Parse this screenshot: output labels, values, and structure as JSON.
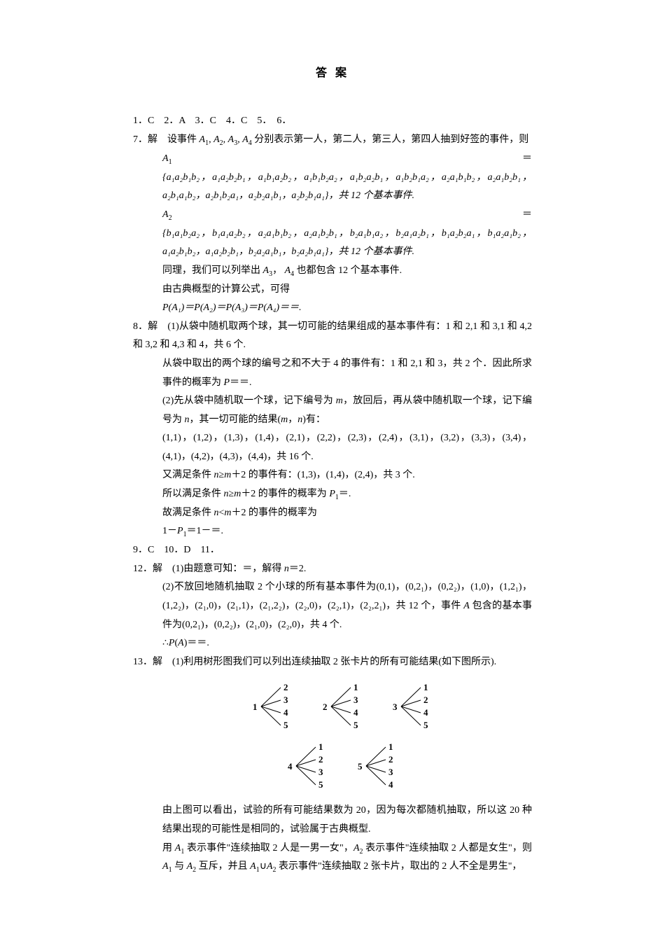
{
  "title": "答 案",
  "short_answers": "1．C　2．A　3．C　4．C　5．　6．",
  "q7": {
    "lead": "7．解　设事件",
    "lead2": "分别表示第一人，第二人，第三人，第四人抽到好签的事件，则",
    "set1": "{a₁a₂b₁b₂，a₁a₂b₂b₁，a₁b₁a₂b₂，a₁b₁b₂a₂，a₁b₂a₂b₁，a₁b₂b₁a₂，a₂a₁b₁b₂，a₂a₁b₂b₁，a₂b₁a₁b₂，a₂b₁b₂a₁，a₂b₂a₁b₁，a₂b₂b₁a₁}，共 12 个基本事件.",
    "set2": "{b₁a₁b₂a₂，b₁a₁a₂b₂，a₂a₁b₁b₂，a₂a₁b₂b₁，b₂a₁b₁a₂，b₂a₁a₂b₁，b₁a₂b₂a₁，b₁a₂a₁b₂，a₁a₂b₁b₂，a₁a₂b₂b₁，b₂a₂a₁b₁，b₂a₂b₁a₁}，共 12 个基本事件.",
    "same": "同理，我们可以列举出",
    "same2": "也都包含 12 个基本事件.",
    "calc": "由古典概型的计算公式，可得",
    "prob": "P(A₁)＝P(A₂)＝P(A₃)＝P(A₄)＝＝."
  },
  "q8": {
    "p1": "8．解　(1)从袋中随机取两个球，其一切可能的结果组成的基本事件有：1 和 2,1 和 3,1 和 4,2 和 3,2 和 4,3 和 4，共 6 个.",
    "p2": "从袋中取出的两个球的编号之和不大于 4 的事件有：1 和 2,1 和 3，共 2 个．因此所求事件的概率为 ",
    "p2tail": "＝＝.",
    "p3": "(2)先从袋中随机取一个球，记下编号为 ",
    "p3b": "，放回后，再从袋中随机取一个球，记下编号为 ",
    "p3c": "，其一切可能的结果(",
    "p3d": ")有：",
    "p4": "(1,1)，(1,2)，(1,3)，(1,4)，(2,1)，(2,2)，(2,3)，(2,4)，(3,1)，(3,2)，(3,3)，(3,4)，(4,1)，(4,2)，(4,3)，(4,4)，共 16 个.",
    "p5a": "又满足条件 ",
    "p5b": "＋2 的事件有：(1,3)，(1,4)，(2,4)，共 3 个.",
    "p6a": "所以满足条件 ",
    "p6b": "＋2 的事件的概率为 ",
    "p6c": "＝.",
    "p7a": "故满足条件 ",
    "p7b": "＋2 的事件的概率为",
    "p8": "1－",
    "p8b": "＝1－＝."
  },
  "mid": "9．C　10．D　11．",
  "q12": {
    "p1": "12．解　(1)由题意可知：＝，解得 ",
    "p1b": "＝2.",
    "p2": "(2)不放回地随机抽取 2 个小球的所有基本事件为(0,1)，(0,2₁)，(0,2₂)，(1,0)，(1,2₁)，(1,2₂)，(2₁,0)，(2₁,1)，(2₁,2₂)，(2₂,0)，(2₂,1)，(2₂,2₁)，共 12 个，事件 ",
    "p2b": "包含的基本事件为(0,2₁)，(0,2₂)，(2₁,0)，(2₂,0)，共 4 个.",
    "p3": "∴",
    "p3b": "(",
    "p3c": ")＝＝."
  },
  "q13": {
    "p1": "13．解　(1)利用树形图我们可以列出连续抽取 2 张卡片的所有可能结果(如下图所示).",
    "p2": "由上图可以看出，试验的所有可能结果数为 20，因为每次都随机抽取，所以这 20 种结果出现的可能性是相同的，试验属于古典概型.",
    "p3a": "用 ",
    "p3b": " 表示事件\"连续抽取 2 人是一男一女\"，",
    "p3c": " 表示事件\"连续抽取 2 人都是女生\"，则 ",
    "p3d": " 与 ",
    "p3e": " 互斥，并且 ",
    "p3f": "∪",
    "p3g": " 表示事件\"连续抽取 2 张卡片，取出的 2 人不全是男生\"，"
  },
  "tree": {
    "roots_top": [
      "1",
      "2",
      "3"
    ],
    "branches_top": [
      [
        "2",
        "3",
        "4",
        "5"
      ],
      [
        "1",
        "3",
        "4",
        "5"
      ],
      [
        "1",
        "2",
        "4",
        "5"
      ]
    ],
    "roots_bot": [
      "4",
      "5"
    ],
    "branches_bot": [
      [
        "1",
        "2",
        "3",
        "5"
      ],
      [
        "1",
        "2",
        "3",
        "4"
      ]
    ],
    "stroke": "#000000",
    "root_fontsize": 14,
    "branch_fontsize": 12
  },
  "colors": {
    "text": "#000000",
    "bg": "#ffffff"
  }
}
